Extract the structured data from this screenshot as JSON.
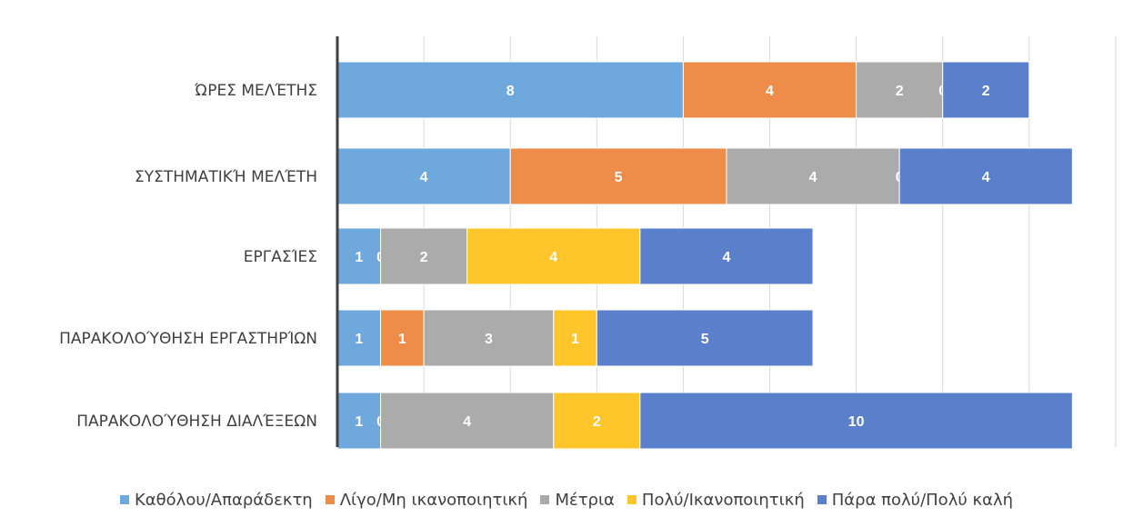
{
  "chart_data": {
    "type": "bar",
    "orientation": "horizontal",
    "stacked": true,
    "title": "",
    "xlabel": "",
    "ylabel": "",
    "categories": [
      "ΏΡΕΣ ΜΕΛΈΤΗΣ",
      "ΣΥΣΤΗΜΑΤΙΚΉ ΜΕΛΈΤΗ",
      "ΕΡΓΑΣΊΕΣ",
      "ΠΑΡΑΚΟΛΟΎΘΗΣΗ ΕΡΓΑΣΤΗΡΊΩΝ",
      "ΠΑΡΑΚΟΛΟΎΘΗΣΗ ΔΙΑΛΈΞΕΩΝ"
    ],
    "series": [
      {
        "name": "Καθόλου/Απαράδεκτη",
        "color": "#6FA8DC",
        "values": [
          8,
          4,
          1,
          1,
          1
        ]
      },
      {
        "name": "Λίγο/Μη ικανοποιητική",
        "color": "#EE8C4A",
        "values": [
          4,
          5,
          0,
          1,
          0
        ]
      },
      {
        "name": "Μέτρια",
        "color": "#ABABAB",
        "values": [
          2,
          4,
          2,
          3,
          4
        ]
      },
      {
        "name": "Πολύ/Ικανοποιητική",
        "color": "#FFC62B",
        "values": [
          0,
          0,
          4,
          1,
          2
        ]
      },
      {
        "name": "Πάρα πολύ/Πολύ καλή",
        "color": "#5B80CB",
        "values": [
          2,
          4,
          4,
          5,
          10
        ]
      }
    ],
    "xlim": [
      0,
      18
    ],
    "grid": true,
    "legend_position": "bottom"
  }
}
